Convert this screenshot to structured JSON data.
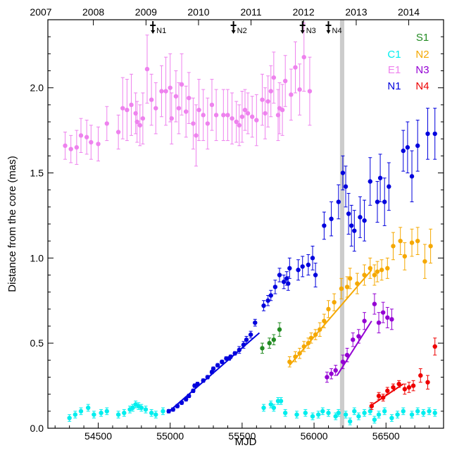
{
  "chart_data": {
    "type": "scatter",
    "xlabel": "MJD",
    "ylabel": "Distance from the core (mas)",
    "xlim": [
      54150,
      56900
    ],
    "ylim": [
      0,
      2.4
    ],
    "x_ticks": [
      "54500",
      "55000",
      "55500",
      "56000",
      "56500"
    ],
    "x_tick_values": [
      54500,
      55000,
      55500,
      56000,
      56500
    ],
    "y_ticks": [
      "0.0",
      "0.5",
      "1.0",
      "1.5",
      "2.0"
    ],
    "y_tick_values": [
      0.0,
      0.5,
      1.0,
      1.5,
      2.0
    ],
    "top_axis_ticks": [
      "2007",
      "2008",
      "2009",
      "2010",
      "2011",
      "2012",
      "2013",
      "2014"
    ],
    "top_axis_tick_values": [
      54101,
      54466,
      54832,
      55197,
      55562,
      55927,
      56293,
      56658
    ],
    "shaded_band": [
      56180,
      56210
    ],
    "shaded_color": "#cccccc",
    "ejection_markers": [
      {
        "label": "N1",
        "x": 54880
      },
      {
        "label": "N2",
        "x": 55440
      },
      {
        "label": "N3",
        "x": 55920
      },
      {
        "label": "N4",
        "x": 56100
      }
    ],
    "series": [
      {
        "name": "E1",
        "color": "#ee82ee",
        "x": [
          54270,
          54310,
          54350,
          54380,
          54420,
          54450,
          54500,
          54560,
          54640,
          54670,
          54700,
          54730,
          54760,
          54770,
          54790,
          54810,
          54840,
          54870,
          54900,
          54940,
          54970,
          55000,
          55010,
          55040,
          55060,
          55080,
          55110,
          55130,
          55160,
          55180,
          55200,
          55230,
          55260,
          55290,
          55320,
          55370,
          55400,
          55430,
          55460,
          55480,
          55500,
          55520,
          55540,
          55570,
          55600,
          55640,
          55660,
          55680,
          55700,
          55720,
          55750,
          55760,
          55780,
          55800,
          55840,
          55870,
          55900,
          55930,
          55970
        ],
        "y": [
          1.66,
          1.64,
          1.65,
          1.72,
          1.71,
          1.68,
          1.67,
          1.79,
          1.74,
          1.88,
          1.87,
          1.9,
          1.85,
          1.8,
          1.78,
          1.82,
          2.11,
          1.93,
          1.88,
          1.98,
          1.98,
          2.0,
          1.82,
          1.95,
          1.88,
          2.02,
          1.86,
          1.94,
          1.79,
          1.72,
          1.87,
          1.84,
          1.79,
          1.9,
          1.84,
          1.84,
          1.84,
          1.82,
          1.8,
          1.78,
          1.83,
          1.87,
          1.85,
          1.83,
          1.81,
          1.93,
          1.85,
          1.92,
          1.98,
          2.06,
          1.84,
          1.88,
          1.87,
          2.04,
          1.96,
          2.12,
          1.99,
          2.18,
          1.98
        ],
        "err": [
          0.08,
          0.08,
          0.1,
          0.1,
          0.1,
          0.1,
          0.1,
          0.1,
          0.1,
          0.18,
          0.18,
          0.18,
          0.12,
          0.12,
          0.12,
          0.15,
          0.2,
          0.15,
          0.15,
          0.15,
          0.2,
          0.2,
          0.15,
          0.15,
          0.15,
          0.18,
          0.15,
          0.15,
          0.15,
          0.18,
          0.18,
          0.15,
          0.15,
          0.15,
          0.15,
          0.15,
          0.15,
          0.15,
          0.12,
          0.12,
          0.15,
          0.12,
          0.12,
          0.12,
          0.15,
          0.15,
          0.15,
          0.15,
          0.15,
          0.15,
          0.15,
          0.15,
          0.15,
          0.15,
          0.15,
          0.15,
          0.15,
          0.2,
          0.2
        ]
      },
      {
        "name": "C1",
        "color": "#00eeee",
        "x": [
          54300,
          54340,
          54380,
          54430,
          54470,
          54520,
          54560,
          54640,
          54680,
          54720,
          54740,
          54760,
          54780,
          54800,
          54830,
          54870,
          54900,
          54950,
          55650,
          55700,
          55720,
          55750,
          55770,
          55800,
          55880,
          55940,
          55990,
          56030,
          56060,
          56100,
          56150,
          56170,
          56220,
          56250,
          56280,
          56310,
          56350,
          56390,
          56420,
          56450,
          56490,
          56540,
          56580,
          56620,
          56680,
          56720,
          56760,
          56800,
          56840
        ],
        "y": [
          0.06,
          0.08,
          0.1,
          0.12,
          0.08,
          0.09,
          0.1,
          0.08,
          0.09,
          0.11,
          0.12,
          0.14,
          0.13,
          0.12,
          0.11,
          0.09,
          0.08,
          0.1,
          0.12,
          0.14,
          0.12,
          0.16,
          0.16,
          0.09,
          0.08,
          0.09,
          0.07,
          0.08,
          0.1,
          0.09,
          0.07,
          0.09,
          0.08,
          0.04,
          0.1,
          0.07,
          0.09,
          0.1,
          0.05,
          0.08,
          0.1,
          0.06,
          0.08,
          0.1,
          0.08,
          0.1,
          0.09,
          0.1,
          0.09
        ],
        "err": [
          0.02,
          0.02,
          0.02,
          0.02,
          0.02,
          0.02,
          0.02,
          0.02,
          0.02,
          0.02,
          0.02,
          0.02,
          0.02,
          0.02,
          0.02,
          0.02,
          0.02,
          0.02,
          0.02,
          0.02,
          0.02,
          0.02,
          0.02,
          0.02,
          0.02,
          0.02,
          0.02,
          0.02,
          0.02,
          0.02,
          0.02,
          0.02,
          0.02,
          0.02,
          0.02,
          0.02,
          0.02,
          0.02,
          0.02,
          0.02,
          0.02,
          0.02,
          0.02,
          0.02,
          0.02,
          0.02,
          0.02,
          0.02,
          0.02
        ]
      },
      {
        "name": "S1",
        "color": "#228b22",
        "x": [
          55640,
          55690,
          55720,
          55760
        ],
        "y": [
          0.47,
          0.5,
          0.52,
          0.58
        ],
        "err": [
          0.03,
          0.03,
          0.03,
          0.04
        ]
      },
      {
        "name": "N1",
        "color": "#0000dd",
        "x": [
          54990,
          55020,
          55050,
          55080,
          55110,
          55130,
          55160,
          55170,
          55190,
          55230,
          55260,
          55290,
          55300,
          55330,
          55360,
          55390,
          55410,
          55420,
          55450,
          55480,
          55510,
          55530,
          55560,
          55590,
          55650,
          55680,
          55700,
          55730,
          55760,
          55790,
          55810,
          55820,
          55830,
          55890,
          55920,
          55960,
          55990,
          56010,
          56070,
          56120,
          56170,
          56200,
          56220,
          56240,
          56260,
          56280,
          56320,
          56350,
          56390,
          56440,
          56460,
          56490,
          56520,
          56620,
          56650,
          56680,
          56720,
          56790,
          56840
        ],
        "y": [
          0.1,
          0.11,
          0.13,
          0.15,
          0.17,
          0.19,
          0.22,
          0.25,
          0.26,
          0.28,
          0.3,
          0.33,
          0.35,
          0.37,
          0.39,
          0.41,
          0.41,
          0.42,
          0.44,
          0.46,
          0.49,
          0.52,
          0.55,
          0.62,
          0.72,
          0.75,
          0.78,
          0.83,
          0.9,
          0.86,
          0.88,
          0.85,
          0.94,
          0.93,
          0.95,
          0.96,
          1.0,
          0.9,
          1.19,
          1.23,
          1.33,
          1.5,
          1.42,
          1.26,
          1.19,
          1.16,
          1.24,
          1.22,
          1.45,
          1.33,
          1.47,
          1.33,
          1.42,
          1.63,
          1.65,
          1.48,
          1.66,
          1.73,
          1.73
        ],
        "err": [
          0.01,
          0.01,
          0.01,
          0.01,
          0.01,
          0.01,
          0.01,
          0.01,
          0.01,
          0.01,
          0.01,
          0.01,
          0.01,
          0.01,
          0.01,
          0.01,
          0.01,
          0.01,
          0.01,
          0.02,
          0.02,
          0.02,
          0.02,
          0.02,
          0.03,
          0.03,
          0.03,
          0.04,
          0.04,
          0.04,
          0.04,
          0.04,
          0.06,
          0.06,
          0.06,
          0.06,
          0.07,
          0.07,
          0.08,
          0.1,
          0.1,
          0.1,
          0.12,
          0.12,
          0.12,
          0.12,
          0.12,
          0.12,
          0.14,
          0.12,
          0.14,
          0.14,
          0.14,
          0.12,
          0.15,
          0.15,
          0.15,
          0.15,
          0.15
        ]
      },
      {
        "name": "N2",
        "color": "#f5a800",
        "x": [
          55830,
          55870,
          55900,
          55930,
          55960,
          55980,
          56010,
          56040,
          56070,
          56100,
          56140,
          56190,
          56230,
          56250,
          56300,
          56350,
          56390,
          56420,
          56440,
          56470,
          56510,
          56550,
          56600,
          56630,
          56680,
          56720,
          56770,
          56810
        ],
        "y": [
          0.39,
          0.42,
          0.44,
          0.48,
          0.5,
          0.53,
          0.55,
          0.58,
          0.63,
          0.7,
          0.74,
          0.82,
          0.83,
          0.88,
          0.85,
          0.9,
          0.94,
          0.9,
          0.92,
          0.93,
          0.94,
          1.07,
          1.1,
          1.01,
          1.09,
          1.1,
          0.98,
          1.07
        ],
        "err": [
          0.03,
          0.03,
          0.03,
          0.03,
          0.03,
          0.03,
          0.03,
          0.04,
          0.04,
          0.05,
          0.05,
          0.06,
          0.06,
          0.06,
          0.06,
          0.06,
          0.06,
          0.06,
          0.06,
          0.06,
          0.06,
          0.08,
          0.08,
          0.08,
          0.08,
          0.08,
          0.1,
          0.1
        ]
      },
      {
        "name": "N3",
        "color": "#9400d3",
        "x": [
          56090,
          56120,
          56150,
          56200,
          56230,
          56270,
          56310,
          56350,
          56420,
          56450,
          56480,
          56510,
          56540
        ],
        "y": [
          0.3,
          0.32,
          0.34,
          0.39,
          0.43,
          0.52,
          0.54,
          0.63,
          0.73,
          0.62,
          0.68,
          0.65,
          0.64
        ],
        "err": [
          0.03,
          0.03,
          0.03,
          0.04,
          0.04,
          0.04,
          0.04,
          0.05,
          0.06,
          0.06,
          0.06,
          0.06,
          0.06
        ]
      },
      {
        "name": "N4",
        "color": "#ee0000",
        "x": [
          56400,
          56450,
          56480,
          56510,
          56550,
          56590,
          56630,
          56660,
          56690,
          56740,
          56790,
          56840
        ],
        "y": [
          0.13,
          0.19,
          0.18,
          0.22,
          0.24,
          0.26,
          0.23,
          0.24,
          0.25,
          0.31,
          0.27,
          0.48
        ],
        "err": [
          0.02,
          0.02,
          0.02,
          0.02,
          0.02,
          0.02,
          0.03,
          0.03,
          0.03,
          0.04,
          0.04,
          0.05
        ]
      }
    ],
    "fit_lines": [
      {
        "series": "N1",
        "color": "#0000dd",
        "x": [
          54980,
          55620
        ],
        "y": [
          0.09,
          0.56
        ]
      },
      {
        "series": "N2",
        "color": "#f5a800",
        "x": [
          55830,
          56400
        ],
        "y": [
          0.37,
          0.93
        ]
      },
      {
        "series": "N3",
        "color": "#9400d3",
        "x": [
          56160,
          56400
        ],
        "y": [
          0.31,
          0.63
        ]
      },
      {
        "series": "N4",
        "color": "#ee0000",
        "x": [
          56390,
          56620
        ],
        "y": [
          0.13,
          0.26
        ]
      }
    ],
    "legend": [
      {
        "label": "S1",
        "color": "#228b22",
        "col": 1,
        "row": 0
      },
      {
        "label": "C1",
        "color": "#00eeee",
        "col": 0,
        "row": 1
      },
      {
        "label": "N2",
        "color": "#f5a800",
        "col": 1,
        "row": 1
      },
      {
        "label": "E1",
        "color": "#ee82ee",
        "col": 0,
        "row": 2
      },
      {
        "label": "N3",
        "color": "#9400d3",
        "col": 1,
        "row": 2
      },
      {
        "label": "N1",
        "color": "#0000dd",
        "col": 0,
        "row": 3
      },
      {
        "label": "N4",
        "color": "#ee0000",
        "col": 1,
        "row": 3
      }
    ],
    "legend_position": "top-right"
  }
}
